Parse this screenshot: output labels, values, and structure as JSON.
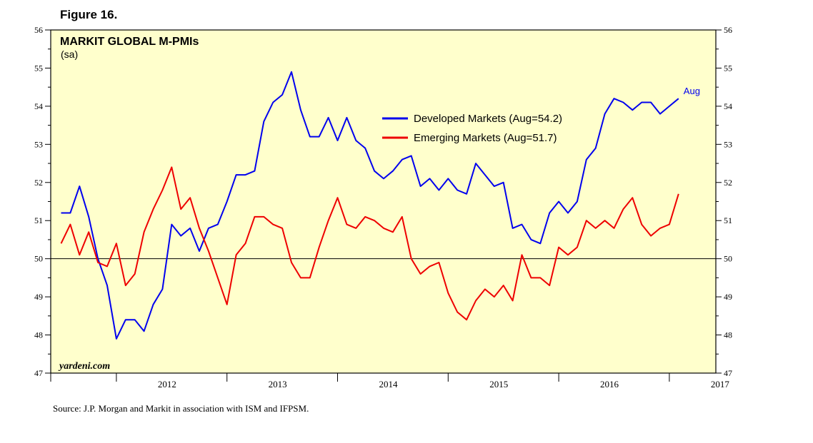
{
  "figure_label": "Figure 16.",
  "source": "Source:  J.P. Morgan and Markit in association with ISM and IFPSM.",
  "watermark": "yardeni.com",
  "colors": {
    "background": "#ffffcc",
    "developed": "#0000ee",
    "emerging": "#ee0000",
    "frame": "#000000"
  },
  "chart_data": {
    "type": "line",
    "title": "MARKIT GLOBAL M-PMIs",
    "subtitle": "(sa)",
    "xlabel": "",
    "ylabel": "",
    "ylim": [
      47,
      56
    ],
    "yticks": [
      47,
      48,
      49,
      50,
      51,
      52,
      53,
      54,
      55,
      56
    ],
    "reference_line": 50,
    "x_start": "2011-07",
    "x_tick_labels": [
      "2012",
      "2013",
      "2014",
      "2015",
      "2016",
      "2017"
    ],
    "end_annotation": "Aug",
    "legend_position": "top-center",
    "series": [
      {
        "name": "Developed Markets (Aug=54.2)",
        "color": "#0000ee",
        "values": [
          51.2,
          51.2,
          51.9,
          51.1,
          50.0,
          49.3,
          47.9,
          48.4,
          48.4,
          48.1,
          48.8,
          49.2,
          50.9,
          50.6,
          50.8,
          50.2,
          50.8,
          50.9,
          51.5,
          52.2,
          52.2,
          52.3,
          53.6,
          54.1,
          54.3,
          54.9,
          53.9,
          53.2,
          53.2,
          53.7,
          53.1,
          53.7,
          53.1,
          52.9,
          52.3,
          52.1,
          52.3,
          52.6,
          52.7,
          51.9,
          52.1,
          51.8,
          52.1,
          51.8,
          51.7,
          52.5,
          52.2,
          51.9,
          52.0,
          50.8,
          50.9,
          50.5,
          50.4,
          51.2,
          51.5,
          51.2,
          51.5,
          52.6,
          52.9,
          53.8,
          54.2,
          54.1,
          53.9,
          54.1,
          54.1,
          53.8,
          54.0,
          54.2
        ]
      },
      {
        "name": "Emerging Markets (Aug=51.7)",
        "color": "#ee0000",
        "values": [
          50.4,
          50.9,
          50.1,
          50.7,
          49.9,
          49.8,
          50.4,
          49.3,
          49.6,
          50.7,
          51.3,
          51.8,
          52.4,
          51.3,
          51.6,
          50.8,
          50.2,
          49.5,
          48.8,
          50.1,
          50.4,
          51.1,
          51.1,
          50.9,
          50.8,
          49.9,
          49.5,
          49.5,
          50.3,
          51.0,
          51.6,
          50.9,
          50.8,
          51.1,
          51.0,
          50.8,
          50.7,
          51.1,
          50.0,
          49.6,
          49.8,
          49.9,
          49.1,
          48.6,
          48.4,
          48.9,
          49.2,
          49.0,
          49.3,
          48.9,
          50.1,
          49.5,
          49.5,
          49.3,
          50.3,
          50.1,
          50.3,
          51.0,
          50.8,
          51.0,
          50.8,
          51.3,
          51.6,
          50.9,
          50.6,
          50.8,
          50.9,
          51.7
        ]
      }
    ]
  }
}
